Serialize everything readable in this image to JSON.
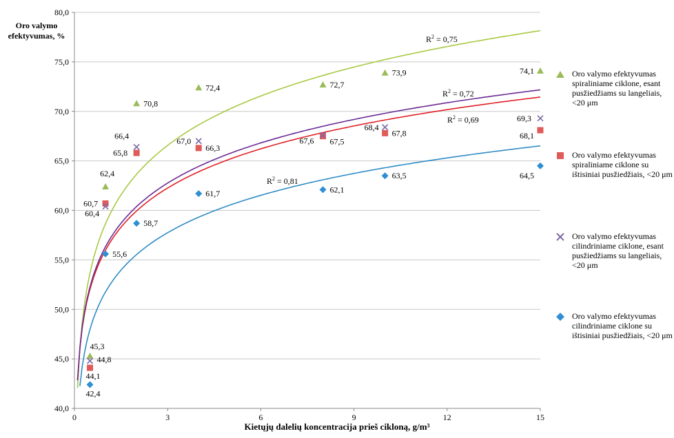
{
  "chart_data": {
    "type": "scatter",
    "ylabel": "Oro valymo efektyvumas, %",
    "xlabel": "Kietųjų dalelių koncentracija prieš cikloną, g/m³",
    "xlim": [
      0,
      15
    ],
    "ylim": [
      40,
      80
    ],
    "x_ticks": [
      "0",
      "3",
      "6",
      "9",
      "12",
      "15"
    ],
    "y_ticks": [
      "40,0",
      "45,0",
      "50,0",
      "55,0",
      "60,0",
      "65,0",
      "70,0",
      "75,0",
      "80,0"
    ],
    "grid": "horizontal",
    "legend_position": "right",
    "series": [
      {
        "name": "Oro valymo efektyvumas spiraliniame ciklone, esant pusžiedžiams su langeliais, <20 μm",
        "marker": "triangle",
        "color": "#9bbb59",
        "trend_color": "#a7c941",
        "x": [
          0.5,
          1,
          2,
          4,
          8,
          10,
          15
        ],
        "y": [
          45.3,
          62.4,
          70.8,
          72.4,
          72.7,
          73.9,
          74.1
        ],
        "labels": [
          "45,3",
          "62,4",
          "70,8",
          "72,4",
          "72,7",
          "73,9",
          "74,1"
        ],
        "r2_label": "R² = 0,75"
      },
      {
        "name": "Oro valymo efektyvumas spiraliniame ciklone su ištisiniai pusžiedžiais, <20 μm",
        "marker": "square",
        "color": "#e05a5a",
        "trend_color": "#e01f25",
        "x": [
          0.5,
          1,
          2,
          4,
          8,
          10,
          15
        ],
        "y": [
          44.1,
          60.7,
          65.8,
          66.3,
          67.5,
          67.8,
          68.1
        ],
        "labels": [
          "44,1",
          "60,7",
          "65,8",
          "66,3",
          "67,5",
          "67,8",
          "68,1"
        ],
        "r2_label": "R² = 0,72"
      },
      {
        "name": "Oro valymo efektyvumas cilindriniame ciklone, esant pusžiedžiams su langeliais, <20 μm",
        "marker": "x",
        "color": "#7d6ba6",
        "trend_color": "#6a2a94",
        "x": [
          0.5,
          1,
          2,
          4,
          8,
          10,
          15
        ],
        "y": [
          44.8,
          60.4,
          66.4,
          67.0,
          67.6,
          68.4,
          69.3
        ],
        "labels": [
          "44,8",
          "60,4",
          "66,4",
          "67,0",
          "67,6",
          "68,4",
          "69,3"
        ],
        "r2_label": "R² = 0,69"
      },
      {
        "name": "Oro valymo efektyvumas cilindriniame ciklone su ištisiniai pusžiedžiais, <20 μm",
        "marker": "diamond",
        "color": "#2e8fd3",
        "trend_color": "#2e8bc6",
        "x": [
          0.5,
          1,
          2,
          4,
          8,
          10,
          15
        ],
        "y": [
          42.4,
          55.6,
          58.7,
          61.7,
          62.1,
          63.5,
          64.5
        ],
        "labels": [
          "42,4",
          "55,6",
          "58,7",
          "61,7",
          "62,1",
          "63,5",
          "64,5"
        ],
        "r2_label": "R² = 0,81"
      }
    ]
  }
}
